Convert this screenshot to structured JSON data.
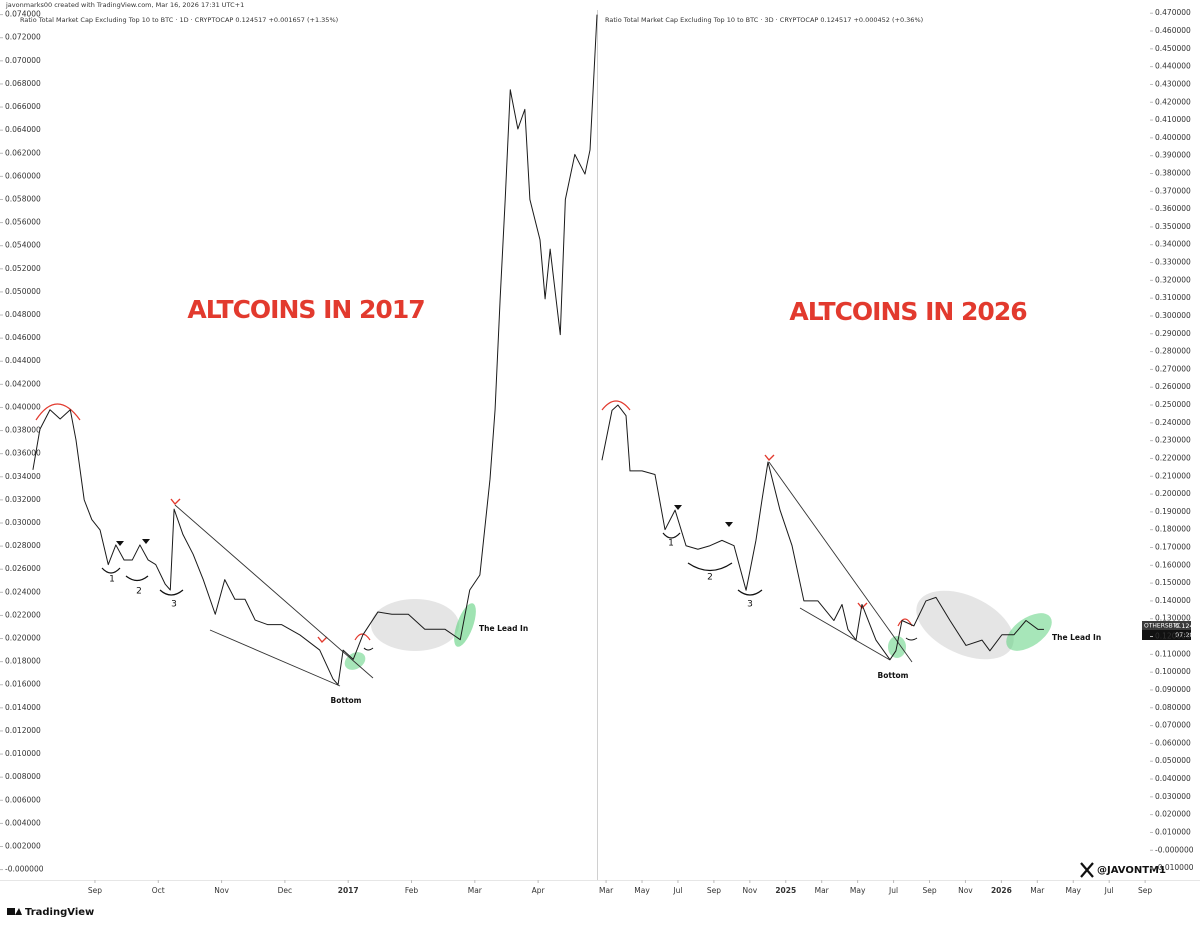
{
  "header": {
    "credit": "javonmarks00 created with TradingView.com, Mar 16, 2026 17:31 UTC+1"
  },
  "footer": {
    "brand": "TradingView",
    "watermark": "@JAVONTM1"
  },
  "chart_data": [
    {
      "type": "line",
      "y_axis_side": "left",
      "color": "#1a1a1a",
      "legend_text": "Ratio Total Market Cap Excluding Top 10 to BTC · 1D · CRYPTOCAP  0.124517  +0.001657 (+1.35%)",
      "annotations": {
        "title": "ALTCOINS IN 2017",
        "bottom": "Bottom",
        "lead_in": "The Lead In",
        "marks": [
          "1",
          "2",
          "3"
        ]
      },
      "xlim": [
        -0.5,
        8.93
      ],
      "xticks": [
        {
          "value": 1,
          "label": "Sep"
        },
        {
          "value": 2,
          "label": "Oct"
        },
        {
          "value": 3,
          "label": "Nov"
        },
        {
          "value": 4,
          "label": "Dec"
        },
        {
          "value": 5,
          "label": "2017"
        },
        {
          "value": 6,
          "label": "Feb"
        },
        {
          "value": 7,
          "label": "Mar"
        },
        {
          "value": 8,
          "label": "Apr"
        }
      ],
      "ylim": [
        -0.0009,
        0.0744
      ],
      "yticks": [
        {
          "value": 0,
          "label": "-0.000000"
        },
        {
          "value": 0.002,
          "label": "0.002000"
        },
        {
          "value": 0.004,
          "label": "0.004000"
        },
        {
          "value": 0.006,
          "label": "0.006000"
        },
        {
          "value": 0.008,
          "label": "0.008000"
        },
        {
          "value": 0.01,
          "label": "0.010000"
        },
        {
          "value": 0.012,
          "label": "0.012000"
        },
        {
          "value": 0.014,
          "label": "0.014000"
        },
        {
          "value": 0.016,
          "label": "0.016000"
        },
        {
          "value": 0.018,
          "label": "0.018000"
        },
        {
          "value": 0.02,
          "label": "0.020000"
        },
        {
          "value": 0.022,
          "label": "0.022000"
        },
        {
          "value": 0.024,
          "label": "0.024000"
        },
        {
          "value": 0.026,
          "label": "0.026000"
        },
        {
          "value": 0.028,
          "label": "0.028000"
        },
        {
          "value": 0.03,
          "label": "0.030000"
        },
        {
          "value": 0.032,
          "label": "0.032000"
        },
        {
          "value": 0.034,
          "label": "0.034000"
        },
        {
          "value": 0.036,
          "label": "0.036000"
        },
        {
          "value": 0.038,
          "label": "0.038000"
        },
        {
          "value": 0.04,
          "label": "0.040000"
        },
        {
          "value": 0.042,
          "label": "0.042000"
        },
        {
          "value": 0.044,
          "label": "0.044000"
        },
        {
          "value": 0.046,
          "label": "0.046000"
        },
        {
          "value": 0.048,
          "label": "0.048000"
        },
        {
          "value": 0.05,
          "label": "0.050000"
        },
        {
          "value": 0.052,
          "label": "0.052000"
        },
        {
          "value": 0.054,
          "label": "0.054000"
        },
        {
          "value": 0.056,
          "label": "0.056000"
        },
        {
          "value": 0.058,
          "label": "0.058000"
        },
        {
          "value": 0.06,
          "label": "0.060000"
        },
        {
          "value": 0.062,
          "label": "0.062000"
        },
        {
          "value": 0.064,
          "label": "0.064000"
        },
        {
          "value": 0.066,
          "label": "0.066000"
        },
        {
          "value": 0.068,
          "label": "0.068000"
        },
        {
          "value": 0.07,
          "label": "0.070000"
        },
        {
          "value": 0.072,
          "label": "0.072000"
        },
        {
          "value": 0.074,
          "label": "0.074000"
        }
      ],
      "x": [
        0.02,
        0.13,
        0.29,
        0.45,
        0.61,
        0.7,
        0.83,
        0.95,
        1.08,
        1.21,
        1.33,
        1.46,
        1.59,
        1.71,
        1.84,
        1.96,
        2.11,
        2.19,
        2.25,
        2.39,
        2.55,
        2.71,
        2.9,
        3.05,
        3.21,
        3.37,
        3.53,
        3.73,
        3.95,
        4.24,
        4.55,
        4.76,
        4.84,
        4.92,
        5.08,
        5.23,
        5.47,
        5.69,
        5.95,
        6.21,
        6.53,
        6.77,
        6.92,
        7.08,
        7.24,
        7.32,
        7.4,
        7.48,
        7.56,
        7.68,
        7.79,
        7.87,
        8.03,
        8.11,
        8.19,
        8.35,
        8.43,
        8.58,
        8.74,
        8.82,
        8.93
      ],
      "values": [
        0.0346,
        0.0381,
        0.0398,
        0.039,
        0.0398,
        0.0372,
        0.032,
        0.0303,
        0.0294,
        0.0264,
        0.0281,
        0.0268,
        0.0268,
        0.0281,
        0.0268,
        0.0264,
        0.0247,
        0.0242,
        0.0312,
        0.029,
        0.0273,
        0.0251,
        0.0221,
        0.0251,
        0.0234,
        0.0234,
        0.0216,
        0.0212,
        0.0212,
        0.0203,
        0.019,
        0.0165,
        0.016,
        0.019,
        0.0182,
        0.0203,
        0.0223,
        0.0221,
        0.0221,
        0.0208,
        0.0208,
        0.0199,
        0.0242,
        0.0255,
        0.0338,
        0.0398,
        0.0494,
        0.058,
        0.0675,
        0.0641,
        0.0658,
        0.058,
        0.0545,
        0.0494,
        0.0537,
        0.0463,
        0.058,
        0.0619,
        0.0602,
        0.0623,
        0.074
      ]
    },
    {
      "type": "line",
      "y_axis_side": "right",
      "color": "#1a1a1a",
      "legend_text": "Ratio Total Market Cap Excluding Top 10 to BTC · 3D · CRYPTOCAP  0.124517  +0.000452 (+0.36%)",
      "annotations": {
        "title": "ALTCOINS IN 2026",
        "bottom": "Bottom",
        "lead_in": "The Lead In",
        "marks": [
          "1",
          "2",
          "3"
        ]
      },
      "price_tag": {
        "symbol": "OTHERSBTC",
        "price": "0.124517",
        "countdown": "07:28:51"
      },
      "xlim": [
        -0.45,
        30.16
      ],
      "xticks": [
        {
          "value": 0,
          "label": "Mar"
        },
        {
          "value": 2,
          "label": "May"
        },
        {
          "value": 4,
          "label": "Jul"
        },
        {
          "value": 6,
          "label": "Sep"
        },
        {
          "value": 8,
          "label": "Nov"
        },
        {
          "value": 10,
          "label": "2025"
        },
        {
          "value": 12,
          "label": "Mar"
        },
        {
          "value": 14,
          "label": "May"
        },
        {
          "value": 16,
          "label": "Jul"
        },
        {
          "value": 18,
          "label": "Sep"
        },
        {
          "value": 20,
          "label": "Nov"
        },
        {
          "value": 22,
          "label": "2026"
        },
        {
          "value": 24,
          "label": "Mar"
        },
        {
          "value": 26,
          "label": "May"
        },
        {
          "value": 28,
          "label": "Jul"
        },
        {
          "value": 30,
          "label": "Sep"
        }
      ],
      "ylim": [
        -0.0167,
        0.4718
      ],
      "yticks": [
        {
          "value": -0.01,
          "label": "-0.010000"
        },
        {
          "value": 0,
          "label": "-0.000000"
        },
        {
          "value": 0.01,
          "label": "0.010000"
        },
        {
          "value": 0.02,
          "label": "0.020000"
        },
        {
          "value": 0.03,
          "label": "0.030000"
        },
        {
          "value": 0.04,
          "label": "0.040000"
        },
        {
          "value": 0.05,
          "label": "0.050000"
        },
        {
          "value": 0.06,
          "label": "0.060000"
        },
        {
          "value": 0.07,
          "label": "0.070000"
        },
        {
          "value": 0.08,
          "label": "0.080000"
        },
        {
          "value": 0.09,
          "label": "0.090000"
        },
        {
          "value": 0.1,
          "label": "0.100000"
        },
        {
          "value": 0.11,
          "label": "0.110000"
        },
        {
          "value": 0.12,
          "label": "0.120000"
        },
        {
          "value": 0.13,
          "label": "0.130000"
        },
        {
          "value": 0.14,
          "label": "0.140000"
        },
        {
          "value": 0.15,
          "label": "0.150000"
        },
        {
          "value": 0.16,
          "label": "0.160000"
        },
        {
          "value": 0.17,
          "label": "0.170000"
        },
        {
          "value": 0.18,
          "label": "0.180000"
        },
        {
          "value": 0.19,
          "label": "0.190000"
        },
        {
          "value": 0.2,
          "label": "0.200000"
        },
        {
          "value": 0.21,
          "label": "0.210000"
        },
        {
          "value": 0.22,
          "label": "0.220000"
        },
        {
          "value": 0.23,
          "label": "0.230000"
        },
        {
          "value": 0.24,
          "label": "0.240000"
        },
        {
          "value": 0.25,
          "label": "0.250000"
        },
        {
          "value": 0.26,
          "label": "0.260000"
        },
        {
          "value": 0.27,
          "label": "0.270000"
        },
        {
          "value": 0.28,
          "label": "0.280000"
        },
        {
          "value": 0.29,
          "label": "0.290000"
        },
        {
          "value": 0.3,
          "label": "0.300000"
        },
        {
          "value": 0.31,
          "label": "0.310000"
        },
        {
          "value": 0.32,
          "label": "0.320000"
        },
        {
          "value": 0.33,
          "label": "0.330000"
        },
        {
          "value": 0.34,
          "label": "0.340000"
        },
        {
          "value": 0.35,
          "label": "0.350000"
        },
        {
          "value": 0.36,
          "label": "0.360000"
        },
        {
          "value": 0.37,
          "label": "0.370000"
        },
        {
          "value": 0.38,
          "label": "0.380000"
        },
        {
          "value": 0.39,
          "label": "0.390000"
        },
        {
          "value": 0.4,
          "label": "0.400000"
        },
        {
          "value": 0.41,
          "label": "0.410000"
        },
        {
          "value": 0.42,
          "label": "0.420000"
        },
        {
          "value": 0.43,
          "label": "0.430000"
        },
        {
          "value": 0.44,
          "label": "0.440000"
        },
        {
          "value": 0.45,
          "label": "0.450000"
        },
        {
          "value": 0.46,
          "label": "0.460000"
        },
        {
          "value": 0.47,
          "label": "0.470000"
        }
      ],
      "x": [
        -0.23,
        0.33,
        0.66,
        1.11,
        1.33,
        2.0,
        2.72,
        3.28,
        3.84,
        4.45,
        5.11,
        5.78,
        6.45,
        7.12,
        7.79,
        8.01,
        8.34,
        8.68,
        9.01,
        9.68,
        10.35,
        11.01,
        11.79,
        12.68,
        13.13,
        13.46,
        13.91,
        14.24,
        15.02,
        15.8,
        16.13,
        16.47,
        17.13,
        17.8,
        18.36,
        19.14,
        20.03,
        20.92,
        21.36,
        22.03,
        22.7,
        23.37,
        24.04,
        24.37
      ],
      "values": [
        0.219,
        0.247,
        0.25,
        0.244,
        0.213,
        0.213,
        0.211,
        0.18,
        0.191,
        0.171,
        0.169,
        0.171,
        0.174,
        0.171,
        0.146,
        0.157,
        0.174,
        0.197,
        0.218,
        0.191,
        0.171,
        0.14,
        0.14,
        0.129,
        0.138,
        0.124,
        0.118,
        0.138,
        0.118,
        0.107,
        0.112,
        0.129,
        0.126,
        0.14,
        0.142,
        0.129,
        0.115,
        0.118,
        0.112,
        0.121,
        0.121,
        0.129,
        0.124,
        0.124
      ]
    }
  ]
}
